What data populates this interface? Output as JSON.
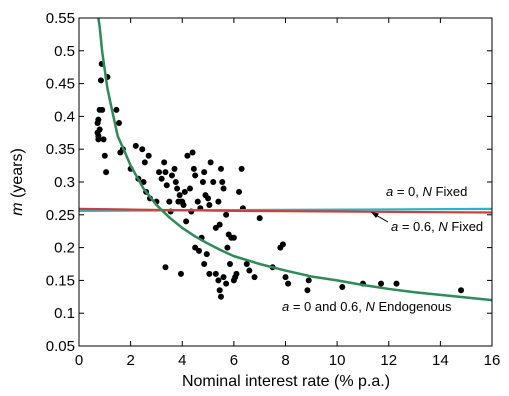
{
  "chart_data": {
    "type": "scatter",
    "xlabel": "Nominal interest rate (% p.a.)",
    "ylabel_italic": "m",
    "ylabel_rest": " (years)",
    "xlim": [
      0,
      16
    ],
    "ylim": [
      0.05,
      0.55
    ],
    "xticks": [
      0,
      2,
      4,
      6,
      8,
      10,
      12,
      14,
      16
    ],
    "yticks": [
      0.05,
      0.1,
      0.15,
      0.2,
      0.25,
      0.3,
      0.35,
      0.4,
      0.45,
      0.5,
      0.55
    ],
    "grid": false,
    "annotations": [
      {
        "id": "fixed0",
        "italic_a": "a",
        "mid": " = 0, ",
        "italic_n": "N",
        "rest": " Fixed"
      },
      {
        "id": "fixed06",
        "italic_a": "a",
        "mid": " = 0.6, ",
        "italic_n": "N",
        "rest": " Fixed"
      },
      {
        "id": "endog",
        "italic_a": "a",
        "mid": " = 0 and 0.6, ",
        "italic_n": "N",
        "rest": " Endogenous"
      }
    ],
    "series": [
      {
        "kind": "scatter",
        "color": "#000000",
        "points": [
          [
            0.72,
            0.375
          ],
          [
            0.72,
            0.39
          ],
          [
            0.75,
            0.365
          ],
          [
            0.75,
            0.37
          ],
          [
            0.75,
            0.395
          ],
          [
            0.8,
            0.41
          ],
          [
            0.8,
            0.38
          ],
          [
            0.85,
            0.455
          ],
          [
            0.88,
            0.48
          ],
          [
            0.9,
            0.41
          ],
          [
            0.95,
            0.365
          ],
          [
            1.0,
            0.34
          ],
          [
            1.05,
            0.315
          ],
          [
            1.1,
            0.46
          ],
          [
            1.45,
            0.41
          ],
          [
            1.55,
            0.39
          ],
          [
            1.6,
            0.345
          ],
          [
            1.7,
            0.35
          ],
          [
            2.0,
            0.32
          ],
          [
            2.2,
            0.355
          ],
          [
            2.3,
            0.305
          ],
          [
            2.45,
            0.35
          ],
          [
            2.5,
            0.3
          ],
          [
            2.55,
            0.33
          ],
          [
            2.6,
            0.285
          ],
          [
            2.7,
            0.34
          ],
          [
            2.75,
            0.275
          ],
          [
            3.0,
            0.27
          ],
          [
            3.1,
            0.315
          ],
          [
            3.2,
            0.305
          ],
          [
            3.3,
            0.33
          ],
          [
            3.35,
            0.315
          ],
          [
            3.4,
            0.295
          ],
          [
            3.5,
            0.27
          ],
          [
            3.55,
            0.255
          ],
          [
            3.6,
            0.31
          ],
          [
            3.7,
            0.32
          ],
          [
            3.75,
            0.3
          ],
          [
            3.8,
            0.29
          ],
          [
            3.85,
            0.27
          ],
          [
            3.9,
            0.28
          ],
          [
            3.95,
            0.27
          ],
          [
            4.0,
            0.27
          ],
          [
            4.05,
            0.265
          ],
          [
            4.1,
            0.285
          ],
          [
            4.15,
            0.24
          ],
          [
            4.2,
            0.34
          ],
          [
            4.3,
            0.29
          ],
          [
            4.35,
            0.255
          ],
          [
            4.4,
            0.345
          ],
          [
            4.45,
            0.32
          ],
          [
            4.5,
            0.31
          ],
          [
            4.6,
            0.27
          ],
          [
            4.7,
            0.26
          ],
          [
            4.75,
            0.215
          ],
          [
            4.8,
            0.3
          ],
          [
            4.85,
            0.315
          ],
          [
            4.9,
            0.28
          ],
          [
            5.0,
            0.275
          ],
          [
            5.05,
            0.265
          ],
          [
            5.1,
            0.33
          ],
          [
            5.2,
            0.3
          ],
          [
            5.3,
            0.23
          ],
          [
            5.4,
            0.27
          ],
          [
            5.45,
            0.235
          ],
          [
            5.5,
            0.32
          ],
          [
            5.55,
            0.3
          ],
          [
            5.6,
            0.29
          ],
          [
            5.7,
            0.25
          ],
          [
            5.75,
            0.2
          ],
          [
            5.8,
            0.22
          ],
          [
            5.85,
            0.175
          ],
          [
            5.9,
            0.215
          ],
          [
            6.0,
            0.215
          ],
          [
            6.1,
            0.16
          ],
          [
            6.2,
            0.285
          ],
          [
            6.3,
            0.32
          ],
          [
            6.35,
            0.26
          ],
          [
            3.35,
            0.17
          ],
          [
            3.95,
            0.16
          ],
          [
            4.5,
            0.2
          ],
          [
            4.65,
            0.195
          ],
          [
            4.85,
            0.175
          ],
          [
            4.95,
            0.19
          ],
          [
            5.05,
            0.16
          ],
          [
            5.3,
            0.16
          ],
          [
            5.4,
            0.15
          ],
          [
            5.45,
            0.135
          ],
          [
            5.5,
            0.125
          ],
          [
            5.6,
            0.155
          ],
          [
            5.7,
            0.145
          ],
          [
            6.0,
            0.15
          ],
          [
            6.05,
            0.155
          ],
          [
            6.5,
            0.175
          ],
          [
            6.6,
            0.165
          ],
          [
            6.8,
            0.155
          ],
          [
            7.0,
            0.245
          ],
          [
            7.5,
            0.17
          ],
          [
            7.8,
            0.2
          ],
          [
            7.9,
            0.205
          ],
          [
            8.0,
            0.155
          ],
          [
            8.1,
            0.145
          ],
          [
            8.85,
            0.135
          ],
          [
            8.9,
            0.15
          ],
          [
            10.2,
            0.14
          ],
          [
            11.0,
            0.145
          ],
          [
            11.7,
            0.145
          ],
          [
            12.3,
            0.145
          ],
          [
            14.8,
            0.135
          ]
        ]
      },
      {
        "kind": "line",
        "color": "#2e8b57",
        "x": [
          0.75,
          0.8,
          0.9,
          1.0,
          1.1,
          1.25,
          1.5,
          1.75,
          2.0,
          2.5,
          3.0,
          3.5,
          4.0,
          4.5,
          5.0,
          5.5,
          6.0,
          7.0,
          8.0,
          9.0,
          10.0,
          11.0,
          12.0,
          13.0,
          14.0,
          15.0,
          16.0
        ],
        "y": [
          0.55,
          0.537,
          0.498,
          0.47,
          0.443,
          0.415,
          0.37,
          0.348,
          0.325,
          0.29,
          0.265,
          0.246,
          0.23,
          0.217,
          0.206,
          0.196,
          0.187,
          0.175,
          0.165,
          0.156,
          0.15,
          0.143,
          0.137,
          0.132,
          0.128,
          0.124,
          0.12
        ]
      },
      {
        "kind": "line",
        "color": "#2ab3c4",
        "x": [
          0,
          16
        ],
        "y": [
          0.256,
          0.259
        ]
      },
      {
        "kind": "line",
        "color": "#d23c3c",
        "x": [
          0,
          2,
          4,
          6,
          8,
          10,
          12,
          14,
          16
        ],
        "y": [
          0.259,
          0.258,
          0.257,
          0.256,
          0.2555,
          0.255,
          0.2545,
          0.254,
          0.2535
        ]
      }
    ]
  }
}
